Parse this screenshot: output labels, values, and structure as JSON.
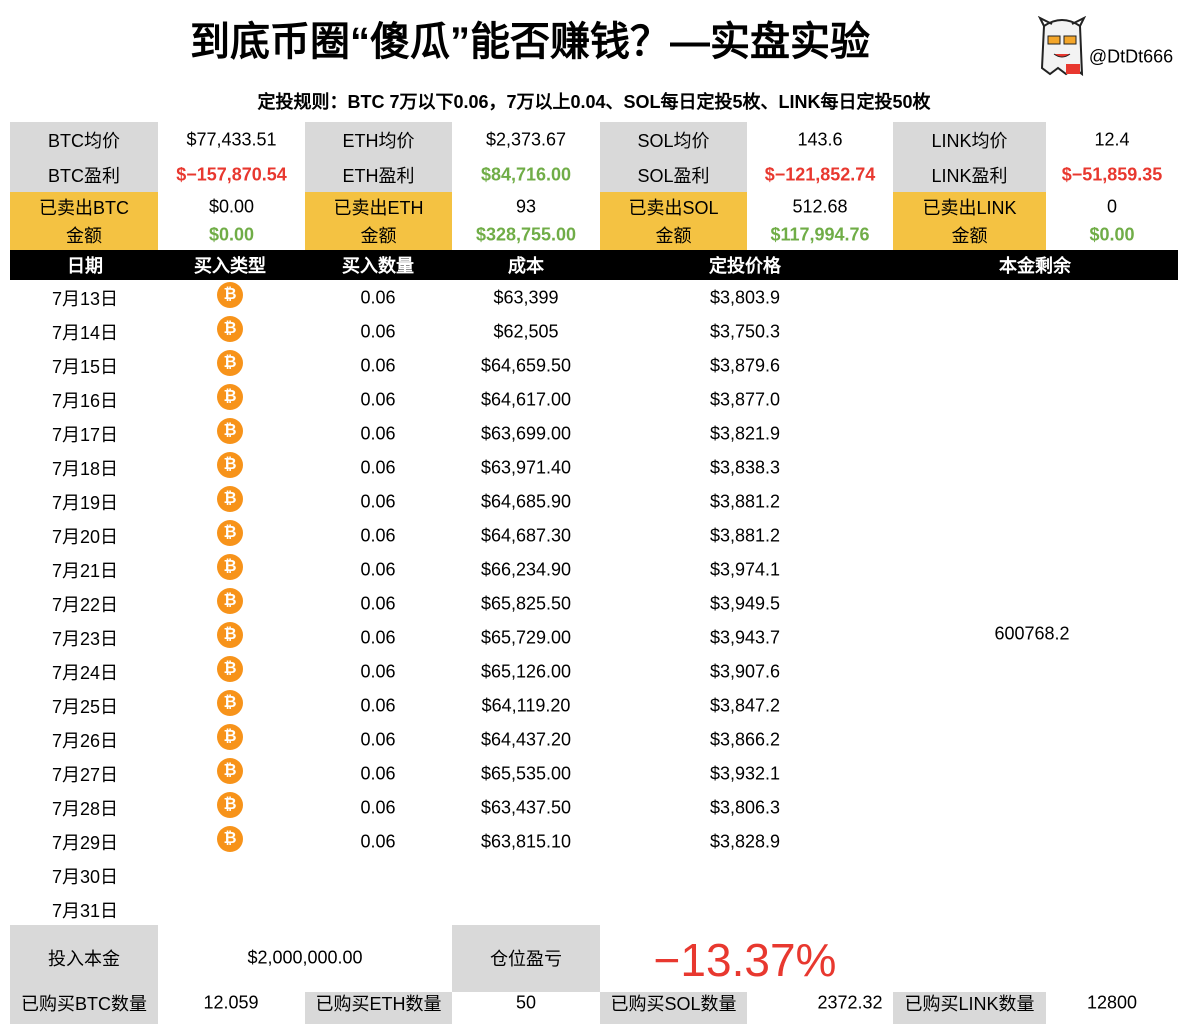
{
  "header": {
    "title": "到底币圈“傻瓜”能否赚钱？—实盘实验",
    "handle": "@DtDt666",
    "rule": "定投规则：BTC 7万以下0.06，7万以上0.04、SOL每日定投5枚、LINK每日定投50枚"
  },
  "assets": [
    {
      "avg_label": "BTC均价",
      "avg": "$77,433.51",
      "profit_label": "BTC盈利",
      "profit": "$−157,870.54",
      "profit_color": "#e8382f",
      "sold_label": "已卖出BTC",
      "amount_label": "金额",
      "sold": "$0.00",
      "amount": "$0.00"
    },
    {
      "avg_label": "ETH均价",
      "avg": "$2,373.67",
      "profit_label": "ETH盈利",
      "profit": "$84,716.00",
      "profit_color": "#70ad47",
      "sold_label": "已卖出ETH",
      "amount_label": "金额",
      "sold": "93",
      "amount": "$328,755.00"
    },
    {
      "avg_label": "SOL均价",
      "avg": "143.6",
      "profit_label": "SOL盈利",
      "profit": "$−121,852.74",
      "profit_color": "#e8382f",
      "sold_label": "已卖出SOL",
      "amount_label": "金额",
      "sold": "512.68",
      "amount": "$117,994.76"
    },
    {
      "avg_label": "LINK均价",
      "avg": "12.4",
      "profit_label": "LINK盈利",
      "profit": "$−51,859.35",
      "profit_color": "#e8382f",
      "sold_label": "已卖出LINK",
      "amount_label": "金额",
      "sold": "0",
      "amount": "$0.00"
    }
  ],
  "table": {
    "columns": [
      "日期",
      "买入类型",
      "买入数量",
      "成本",
      "定投价格",
      "本金剩余"
    ],
    "rows": [
      {
        "date": "7月13日",
        "qty": "0.06",
        "cost": "$63,399",
        "price": "$3,803.9"
      },
      {
        "date": "7月14日",
        "qty": "0.06",
        "cost": "$62,505",
        "price": "$3,750.3"
      },
      {
        "date": "7月15日",
        "qty": "0.06",
        "cost": "$64,659.50",
        "price": "$3,879.6"
      },
      {
        "date": "7月16日",
        "qty": "0.06",
        "cost": "$64,617.00",
        "price": "$3,877.0"
      },
      {
        "date": "7月17日",
        "qty": "0.06",
        "cost": "$63,699.00",
        "price": "$3,821.9"
      },
      {
        "date": "7月18日",
        "qty": "0.06",
        "cost": "$63,971.40",
        "price": "$3,838.3"
      },
      {
        "date": "7月19日",
        "qty": "0.06",
        "cost": "$64,685.90",
        "price": "$3,881.2"
      },
      {
        "date": "7月20日",
        "qty": "0.06",
        "cost": "$64,687.30",
        "price": "$3,881.2"
      },
      {
        "date": "7月21日",
        "qty": "0.06",
        "cost": "$66,234.90",
        "price": "$3,974.1"
      },
      {
        "date": "7月22日",
        "qty": "0.06",
        "cost": "$65,825.50",
        "price": "$3,949.5"
      },
      {
        "date": "7月23日",
        "qty": "0.06",
        "cost": "$65,729.00",
        "price": "$3,943.7"
      },
      {
        "date": "7月24日",
        "qty": "0.06",
        "cost": "$65,126.00",
        "price": "$3,907.6"
      },
      {
        "date": "7月25日",
        "qty": "0.06",
        "cost": "$64,119.20",
        "price": "$3,847.2"
      },
      {
        "date": "7月26日",
        "qty": "0.06",
        "cost": "$64,437.20",
        "price": "$3,866.2"
      },
      {
        "date": "7月27日",
        "qty": "0.06",
        "cost": "$65,535.00",
        "price": "$3,932.1"
      },
      {
        "date": "7月28日",
        "qty": "0.06",
        "cost": "$63,437.50",
        "price": "$3,806.3"
      },
      {
        "date": "7月29日",
        "qty": "0.06",
        "cost": "$63,815.10",
        "price": "$3,828.9"
      },
      {
        "date": "7月30日"
      },
      {
        "date": "7月31日"
      }
    ],
    "remaining": "600768.2"
  },
  "footer": {
    "principal_label": "投入本金",
    "principal": "$2,000,000.00",
    "pnl_label": "仓位盈亏",
    "pnl": "−13.37%",
    "pnl_color": "#e8382f",
    "holdings": [
      {
        "label": "已购买BTC数量",
        "value": "12.059"
      },
      {
        "label": "已购买ETH数量",
        "value": "50"
      },
      {
        "label": "已购买SOL数量",
        "value": "2372.32"
      },
      {
        "label": "已购买LINK数量",
        "value": "12800"
      }
    ]
  }
}
